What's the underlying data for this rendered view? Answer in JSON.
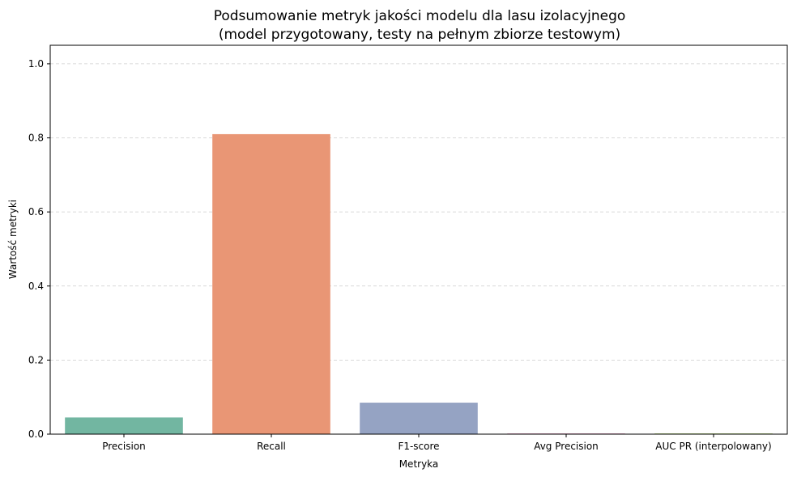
{
  "chart_data": {
    "type": "bar",
    "title": "Podsumowanie metryk jakości modelu dla lasu izolacyjnego",
    "subtitle": "(model przygotowany, testy na pełnym zbiorze testowym)",
    "xlabel": "Metryka",
    "ylabel": "Wartość metryki",
    "categories": [
      "Precision",
      "Recall",
      "F1-score",
      "Avg Precision",
      "AUC PR (interpolowany)"
    ],
    "values": [
      0.045,
      0.81,
      0.085,
      0.002,
      0.002
    ],
    "colors": [
      "#72b6a1",
      "#e99675",
      "#95a3c3",
      "#e8a7c8",
      "#b8d97e"
    ],
    "ylim": [
      0,
      1.05
    ],
    "yticks": [
      "0.0",
      "0.2",
      "0.4",
      "0.6",
      "0.8",
      "1.0"
    ],
    "grid": "y-dashed",
    "legend": "none"
  }
}
